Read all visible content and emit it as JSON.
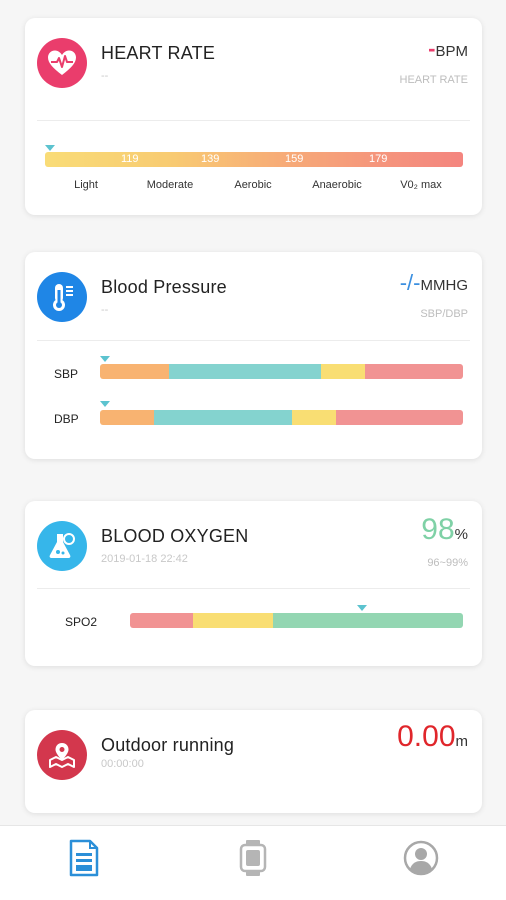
{
  "heart_rate": {
    "title": "HEART RATE",
    "subtitle": "--",
    "value": "-",
    "unit": "BPM",
    "value_label": "HEART RATE",
    "ticks": [
      "119",
      "139",
      "159",
      "179"
    ],
    "zones": [
      "Light",
      "Moderate",
      "Aerobic",
      "Anaerobic",
      "V0₂ max"
    ],
    "icon": "heart-pulse-icon",
    "icon_color": "#ea3d6c"
  },
  "blood_pressure": {
    "title": "Blood Pressure",
    "subtitle": "--",
    "value": "-/-",
    "unit": "MMHG",
    "value_label": "SBP/DBP",
    "rows": [
      {
        "label": "SBP"
      },
      {
        "label": "DBP"
      }
    ],
    "icon": "thermometer-icon",
    "icon_color": "#1f86e6",
    "value_color": "#3b8fe0"
  },
  "blood_oxygen": {
    "title": "BLOOD OXYGEN",
    "subtitle": "2019-01-18 22:42",
    "value": "98",
    "unit": "%",
    "value_label": "96~99%",
    "row_label": "SPO2",
    "level": 98,
    "icon": "flask-icon",
    "icon_color": "#36b6ea",
    "value_color": "#7fd1a6"
  },
  "outdoor_running": {
    "title": "Outdoor running",
    "subtitle": "00:00:00",
    "value": "0.00",
    "unit": "m",
    "icon": "map-pin-icon",
    "icon_color": "#d3374d",
    "value_color": "#e0262b"
  },
  "nav": {
    "items": [
      {
        "icon": "report-icon",
        "active": true
      },
      {
        "icon": "watch-icon",
        "active": false
      },
      {
        "icon": "profile-icon",
        "active": false
      }
    ]
  }
}
